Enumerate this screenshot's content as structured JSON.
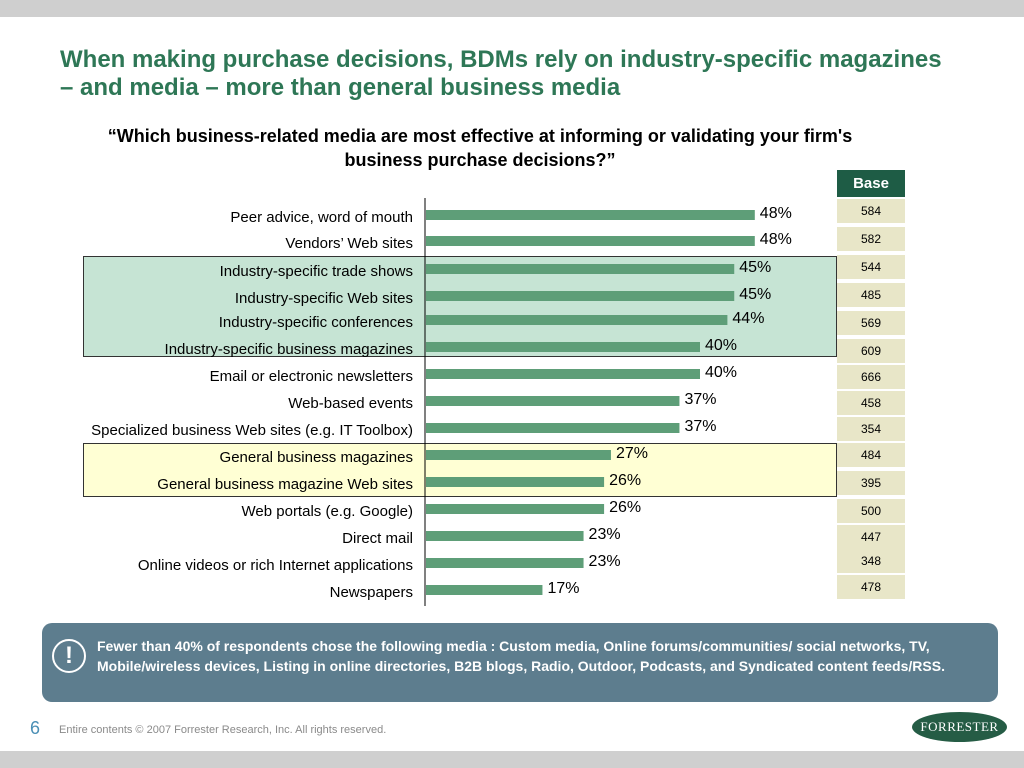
{
  "slide_title": "When making purchase decisions, BDMs rely on industry-specific magazines – and media – more than general business media",
  "chart_data": {
    "type": "bar",
    "orientation": "horizontal",
    "title": "“Which business-related media are most effective at informing or validating your firm's business purchase decisions?”",
    "categories": [
      "Peer advice, word of mouth",
      "Vendors’ Web sites",
      "Industry-specific trade shows",
      "Industry-specific Web sites",
      "Industry-specific conferences",
      "Industry-specific business magazines",
      "Email or electronic newsletters",
      "Web-based events",
      "Specialized business Web sites (e.g. IT Toolbox)",
      "General business magazines",
      "General business magazine Web sites",
      "Web portals (e.g. Google)",
      "Direct mail",
      "Online videos or rich Internet applications",
      "Newspapers"
    ],
    "values": [
      48,
      48,
      45,
      45,
      44,
      40,
      40,
      37,
      37,
      27,
      26,
      26,
      23,
      23,
      17
    ],
    "value_labels": [
      "48%",
      "48%",
      "45%",
      "45%",
      "44%",
      "40%",
      "40%",
      "37%",
      "37%",
      "27%",
      "26%",
      "26%",
      "23%",
      "23%",
      "17%"
    ],
    "bar_color": "#5e9e78",
    "grid": false
  },
  "base": {
    "header": "Base",
    "values": [
      "584",
      "582",
      "544",
      "485",
      "569",
      "609",
      "666",
      "458",
      "354",
      "484",
      "395",
      "500",
      "447",
      "348",
      "478"
    ]
  },
  "note": {
    "icon": "exclamation-icon",
    "icon_glyph": "!",
    "text": "Fewer than 40% of respondents chose the following media : Custom media, Online forums/communities/ social networks, TV, Mobile/wireless devices, Listing in online directories, B2B blogs, Radio, Outdoor, Podcasts, and Syndicated content feeds/RSS."
  },
  "footer": {
    "page_number": "6",
    "copyright": "Entire contents © 2007  Forrester Research, Inc. All rights reserved.",
    "logo_text": "FORRESTER"
  }
}
